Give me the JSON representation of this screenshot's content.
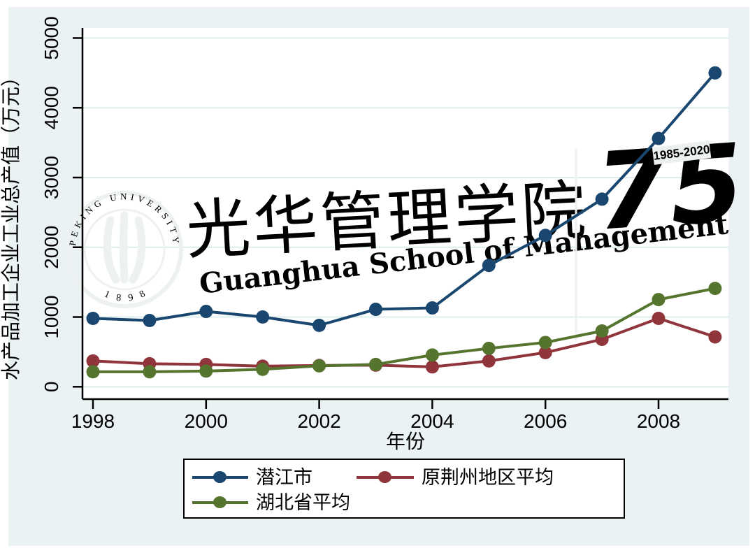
{
  "chart_data": {
    "type": "line",
    "title": "",
    "xlabel": "年份",
    "ylabel": "水产品加工企业工业总产值（万元）",
    "x": [
      1998,
      1999,
      2000,
      2001,
      2002,
      2003,
      2004,
      2005,
      2006,
      2007,
      2008,
      2009
    ],
    "xticks": [
      1998,
      2000,
      2002,
      2004,
      2006,
      2008
    ],
    "yticks": [
      0,
      1000,
      2000,
      3000,
      4000,
      5000
    ],
    "xlim": [
      1997.8,
      2009.25
    ],
    "ylim": [
      0,
      5150
    ],
    "grid": "horizontal",
    "legend_position": "bottom-center",
    "plot_background": "#ffffff",
    "frame_background": "#eaf2f3",
    "gridline_color": "#dfecee",
    "series": [
      {
        "name": "潜江市",
        "color": "#1a476f",
        "values": [
          980,
          950,
          1080,
          1000,
          880,
          1110,
          1130,
          1740,
          2170,
          2690,
          3560,
          4500
        ]
      },
      {
        "name": "原荆州地区平均",
        "color": "#90353b",
        "values": [
          370,
          330,
          320,
          295,
          305,
          310,
          285,
          370,
          490,
          680,
          980,
          715
        ]
      },
      {
        "name": "湖北省平均",
        "color": "#55752f",
        "values": [
          215,
          215,
          225,
          250,
          300,
          320,
          455,
          550,
          635,
          800,
          1250,
          1410
        ]
      }
    ]
  },
  "legend": {
    "items": [
      {
        "label": "潜江市",
        "color": "#1a476f"
      },
      {
        "label": "原荆州地区平均",
        "color": "#90353b"
      },
      {
        "label": "湖北省平均",
        "color": "#55752f"
      }
    ]
  },
  "watermark": {
    "seal_text_top": "PEKING UNIVERSITY",
    "seal_text_bottom": "1 8 9 8",
    "calligraphy": "光华管理学院",
    "subtitle": "Guanghua School of Management",
    "anniversary_number": "75",
    "anniversary_years": "1985-2020"
  }
}
